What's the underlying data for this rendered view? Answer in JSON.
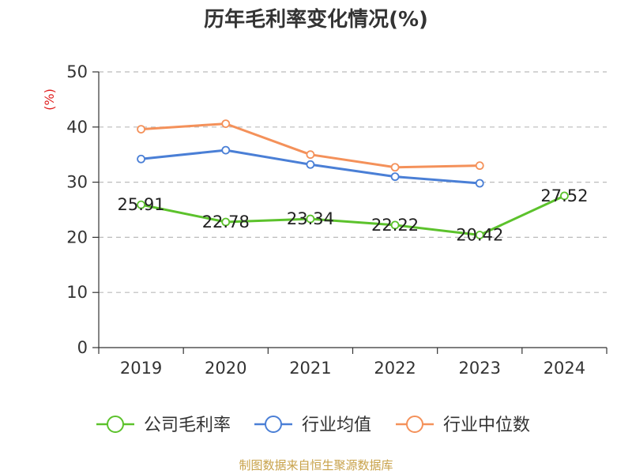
{
  "chart_data": {
    "type": "line",
    "title": "历年毛利率变化情况(%)",
    "ylabel": "(%)",
    "categories": [
      "2019",
      "2020",
      "2021",
      "2022",
      "2023",
      "2024"
    ],
    "ylim": [
      0,
      50
    ],
    "yticks": [
      "0",
      "10",
      "20",
      "30",
      "40",
      "50"
    ],
    "grid": "horizontal-dashed",
    "legend_position": "bottom",
    "series": [
      {
        "name": "公司毛利率",
        "color": "#5cc22c",
        "values": [
          25.91,
          22.78,
          23.34,
          22.22,
          20.42,
          27.52
        ],
        "labels": [
          "25.91",
          "22.78",
          "23.34",
          "22.22",
          "20.42",
          "27.52"
        ]
      },
      {
        "name": "行业均值",
        "color": "#4a7fd6",
        "values": [
          34.2,
          35.8,
          33.2,
          31.0,
          29.8,
          null
        ]
      },
      {
        "name": "行业中位数",
        "color": "#f4915a",
        "values": [
          39.6,
          40.6,
          35.0,
          32.7,
          33.0,
          null
        ]
      }
    ],
    "source": "制图数据来自恒生聚源数据库"
  }
}
